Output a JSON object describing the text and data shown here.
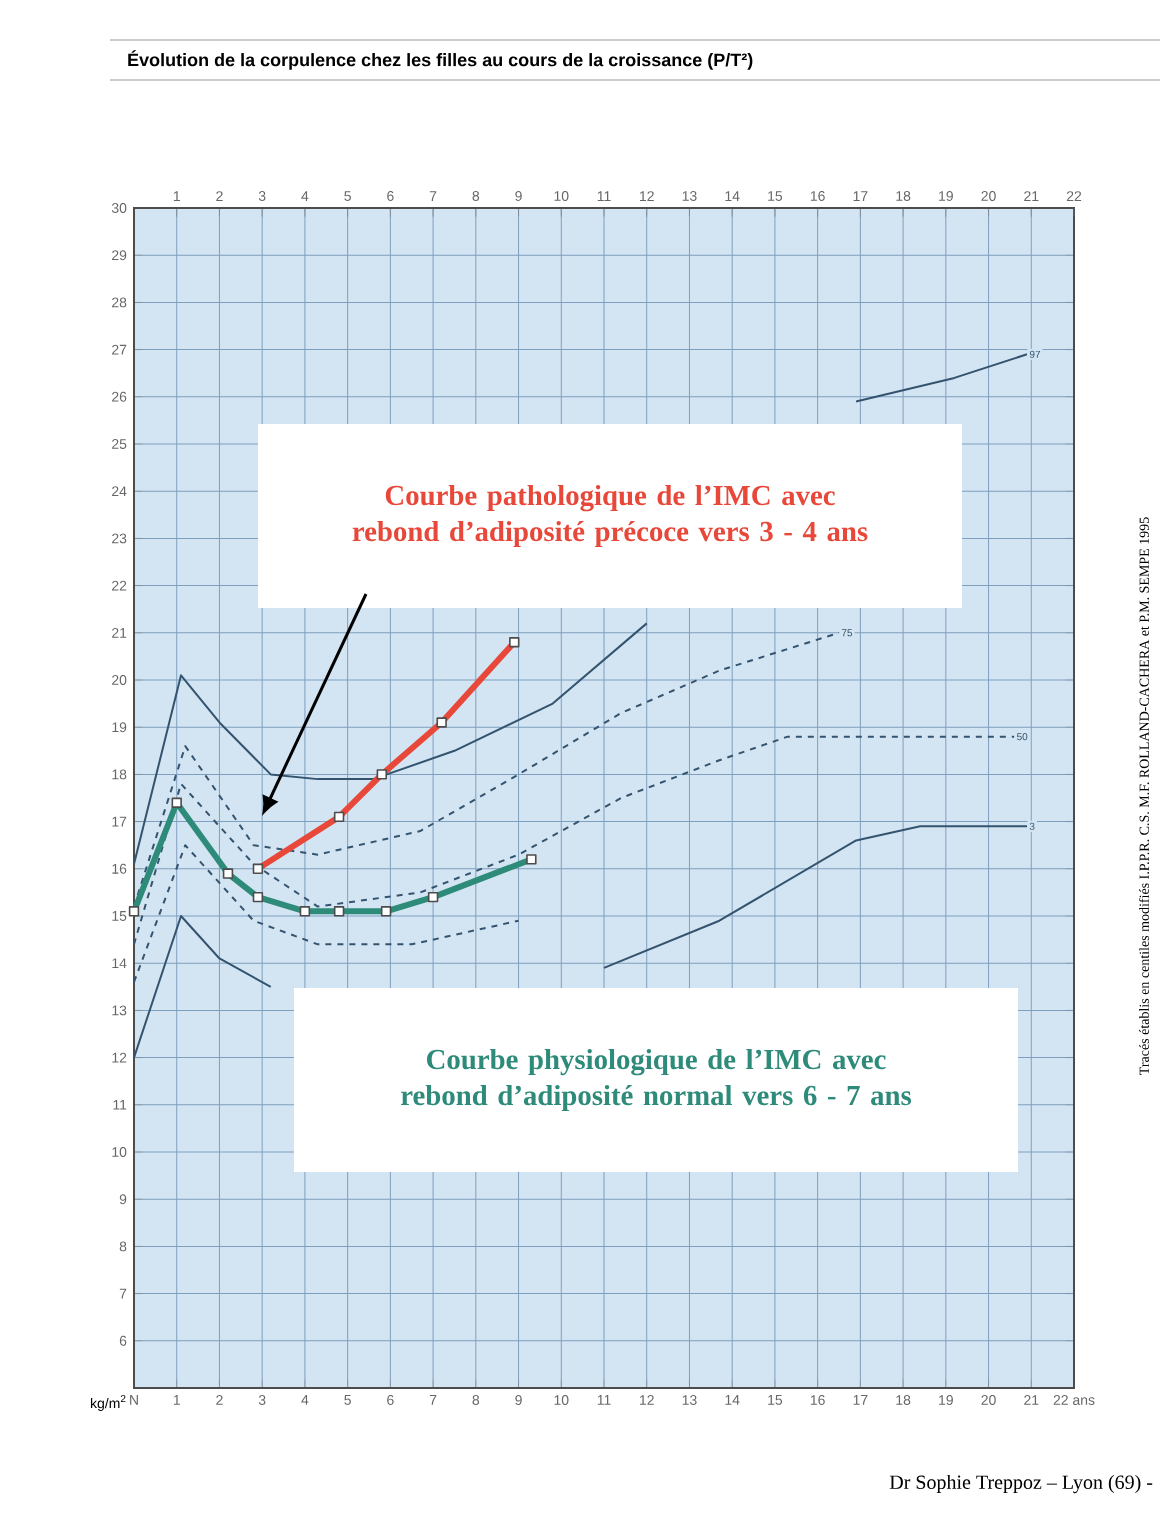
{
  "chart_data": {
    "type": "line",
    "title": "Évolution de la corpulence chez les filles au cours de la croissance (P/T²)",
    "ylabel": "kg/m$^{2}$",
    "xlim": [
      0,
      22
    ],
    "xticks": [
      {
        "value": 0,
        "label": "N"
      },
      1,
      2,
      3,
      4,
      5,
      6,
      7,
      8,
      9,
      10,
      11,
      12,
      13,
      14,
      15,
      16,
      17,
      18,
      19,
      20,
      21,
      {
        "value": 22,
        "label": "22 ans"
      }
    ],
    "x2lim": [
      0,
      22
    ],
    "x2ticks": [
      1,
      2,
      3,
      4,
      5,
      6,
      7,
      8,
      9,
      10,
      11,
      12,
      13,
      14,
      15,
      16,
      17,
      18,
      19,
      20,
      21,
      22
    ],
    "ylim": [
      5,
      30
    ],
    "yticks": [
      6,
      7,
      8,
      9,
      10,
      11,
      12,
      13,
      14,
      15,
      16,
      17,
      18,
      19,
      20,
      21,
      22,
      23,
      24,
      25,
      26,
      27,
      28,
      29,
      30
    ],
    "grid": true,
    "series": [
      {
        "name": "97",
        "color": "#34536f",
        "line_style": "solid",
        "marker": "none",
        "x": [
          0,
          1.1,
          2,
          3.2,
          4.3,
          5.6,
          7.5,
          9.8,
          12,
          14,
          16.9,
          19.2,
          20.9
        ],
        "values": [
          16.1,
          20.1,
          19.1,
          18.0,
          17.9,
          17.9,
          18.5,
          19.5,
          21.2,
          null,
          25.9,
          26.4,
          26.9
        ]
      },
      {
        "name": "75",
        "color": "#34536f",
        "line_style": "dashed",
        "marker": "none",
        "x": [
          0,
          1.2,
          2.8,
          4.3,
          6.7,
          9,
          11.4,
          13.7,
          16.5
        ],
        "values": [
          15.2,
          18.6,
          16.5,
          16.3,
          16.8,
          18.0,
          19.3,
          20.2,
          21.0
        ]
      },
      {
        "name": "50",
        "color": "#34536f",
        "line_style": "dashed",
        "marker": "none",
        "x": [
          0,
          1.1,
          2.8,
          4.3,
          6.7,
          9,
          11.4,
          13.7,
          15.3,
          20.6
        ],
        "values": [
          14.4,
          17.8,
          16.1,
          15.2,
          15.5,
          16.3,
          17.5,
          18.3,
          18.8,
          18.8
        ]
      },
      {
        "color": "#34536f",
        "line_style": "dashed",
        "marker": "none",
        "x": [
          0,
          1.2,
          2.8,
          4.3,
          6.5,
          9
        ],
        "values": [
          13.6,
          16.5,
          14.9,
          14.4,
          14.4,
          14.9
        ]
      },
      {
        "name": "3",
        "color": "#34536f",
        "line_style": "solid",
        "marker": "none",
        "x": [
          0,
          1.1,
          2,
          3.2,
          7,
          11,
          13.7,
          16.9,
          18.4,
          20.9
        ],
        "values": [
          12.0,
          15.0,
          14.1,
          13.5,
          null,
          13.9,
          14.9,
          16.6,
          16.9,
          16.9
        ]
      },
      {
        "color": "#e8483a",
        "line_style": "solid",
        "marker": "square",
        "x": [
          2.9,
          4.8,
          5.8,
          7.2,
          8.9
        ],
        "values": [
          16.0,
          17.1,
          18.0,
          19.1,
          20.8
        ]
      },
      {
        "color": "#2e8b7a",
        "line_style": "solid",
        "marker": "square",
        "x": [
          0,
          1,
          2.2,
          2.9,
          4.0,
          4.8,
          5.9,
          7.0,
          9.3
        ],
        "values": [
          15.1,
          17.4,
          15.9,
          15.4,
          15.1,
          15.1,
          15.1,
          15.4,
          16.2
        ]
      }
    ],
    "annotations": [
      "Courbe pathologique de l’IMC avec rebond d’adiposité précoce vers 3 - 4 ans",
      "Courbe physiologique de l’IMC avec rebond d’adiposité normal vers 6 - 7 ans",
      "Tracés établis en centiles modifiés I.P.P.R. C.S. M.F. ROLLAND-CACHERA et P.M. SEMPE 1995",
      "Dr Sophie Treppoz – Lyon (69) -"
    ]
  }
}
